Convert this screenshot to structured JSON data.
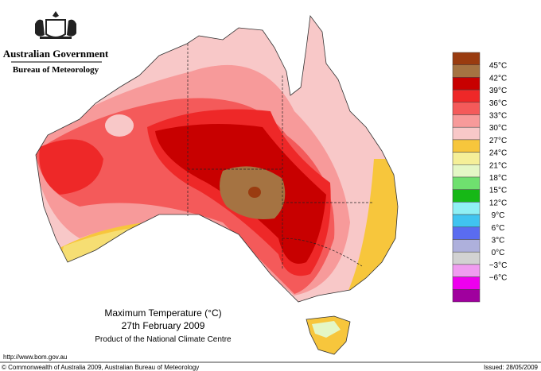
{
  "header": {
    "government": "Australian Government",
    "bureau": "Bureau of Meteorology"
  },
  "title": {
    "lines": [
      "Maximum Temperature (°C)",
      "27th February 2009",
      "Product of the National Climate Centre"
    ]
  },
  "legend": {
    "labels": [
      "45°C",
      "42°C",
      "39°C",
      "36°C",
      "33°C",
      "30°C",
      "27°C",
      "24°C",
      "21°C",
      "18°C",
      "15°C",
      "12°C",
      "9°C",
      "6°C",
      "3°C",
      "0°C",
      "−3°C",
      "−6°C"
    ],
    "colors": [
      "#9a3c10",
      "#a57342",
      "#c80000",
      "#ee2828",
      "#f45a5a",
      "#f79a9a",
      "#f8c8c8",
      "#f7c63c",
      "#f5ef98",
      "#e4f7c6",
      "#6fe06f",
      "#16b816",
      "#8ff0f4",
      "#40c4f0",
      "#5a6cf0",
      "#aeb0dc",
      "#d2d2d2",
      "#f09cf0",
      "#ee00ee",
      "#a0009e"
    ]
  },
  "footer": {
    "url": "http://www.bom.gov.au",
    "copyright": "© Commonwealth of Australia 2009, Australian Bureau of Meteorology",
    "issued": "Issued: 28/05/2009"
  }
}
